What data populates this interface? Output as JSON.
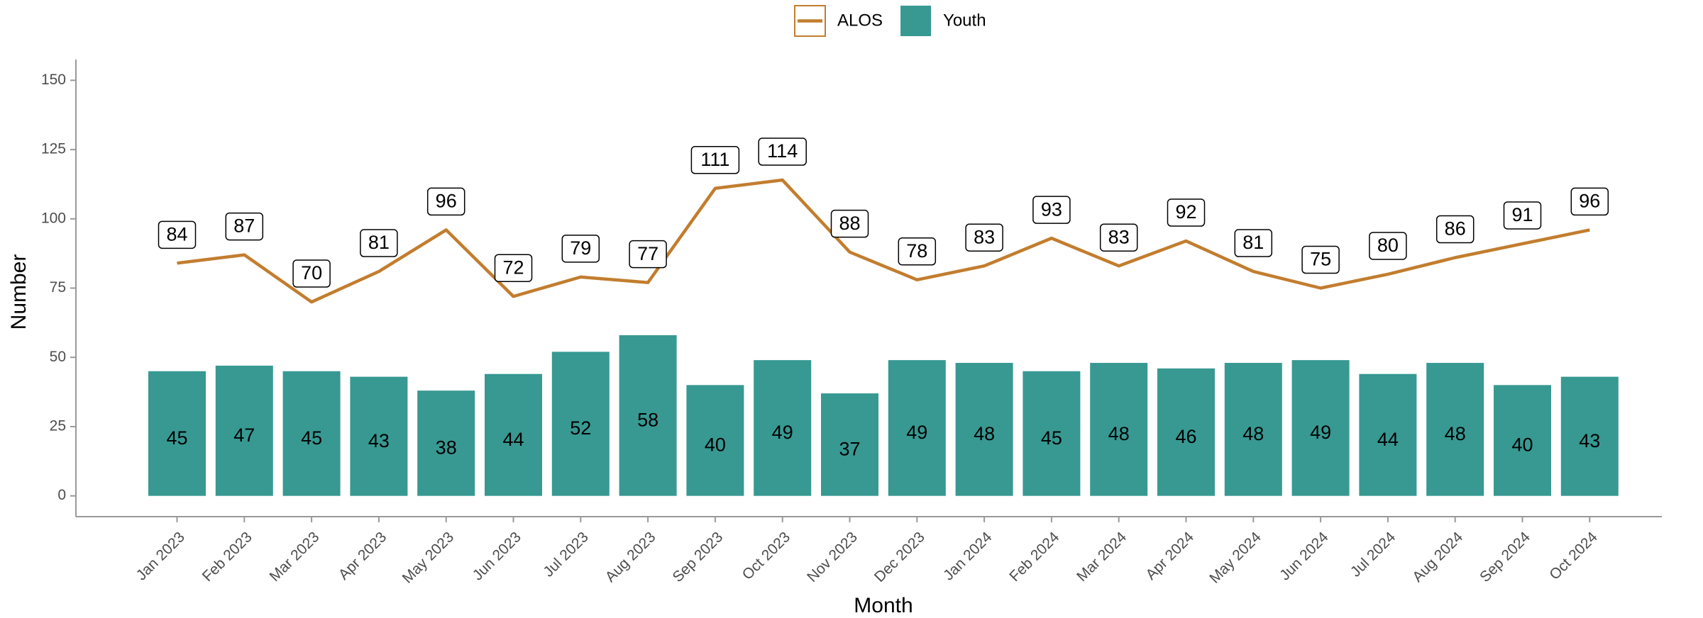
{
  "chart_data": {
    "type": "bar",
    "x_label": "Month",
    "y_label": "Number",
    "categories": [
      "Jan 2023",
      "Feb 2023",
      "Mar 2023",
      "Apr 2023",
      "May 2023",
      "Jun 2023",
      "Jul 2023",
      "Aug 2023",
      "Sep 2023",
      "Oct 2023",
      "Nov 2023",
      "Dec 2023",
      "Jan 2024",
      "Feb 2024",
      "Mar 2024",
      "Apr 2024",
      "May 2024",
      "Jun 2024",
      "Jul 2024",
      "Aug 2024",
      "Sep 2024",
      "Oct 2024"
    ],
    "series": [
      {
        "name": "ALOS",
        "type": "line",
        "color": "#c27d2e",
        "values": [
          84,
          87,
          70,
          81,
          96,
          72,
          79,
          77,
          111,
          114,
          88,
          78,
          83,
          93,
          83,
          92,
          81,
          75,
          80,
          86,
          91,
          96
        ]
      },
      {
        "name": "Youth",
        "type": "bar",
        "color": "#379992",
        "values": [
          45,
          47,
          45,
          43,
          38,
          44,
          52,
          58,
          40,
          49,
          37,
          49,
          48,
          45,
          48,
          46,
          48,
          49,
          44,
          48,
          40,
          43
        ]
      }
    ],
    "ylim": [
      -7.5,
      157.5
    ],
    "yticks": [
      0,
      25,
      50,
      75,
      100,
      125,
      150
    ],
    "legend": "top",
    "grid": false
  }
}
